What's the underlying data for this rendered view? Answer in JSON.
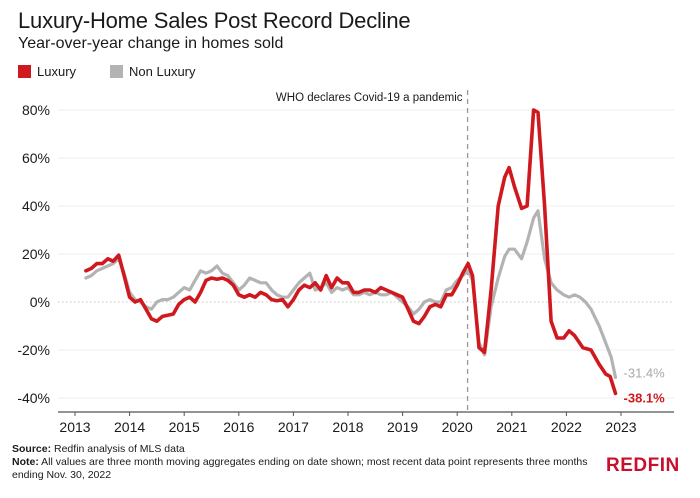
{
  "chart_data": {
    "type": "line",
    "title": "Luxury-Home Sales Post Record Decline",
    "subtitle": "Year-over-year change in homes sold",
    "xlabel": "",
    "ylabel": "",
    "ylim": [
      -40,
      80
    ],
    "xlim": [
      2012.9,
      2023.95
    ],
    "y_ticks": [
      80,
      60,
      40,
      20,
      0,
      -20,
      -40
    ],
    "y_tick_labels": [
      "80%",
      "60%",
      "40%",
      "20%",
      "0%",
      "-20%",
      "-40%"
    ],
    "x_ticks": [
      2013,
      2014,
      2015,
      2016,
      2017,
      2018,
      2019,
      2020,
      2021,
      2022,
      2023
    ],
    "x_tick_labels": [
      "2013",
      "2014",
      "2015",
      "2016",
      "2017",
      "2018",
      "2019",
      "2020",
      "2021",
      "2022",
      "2023"
    ],
    "grid": true,
    "legend": {
      "position": "top-left",
      "entries": [
        "Luxury",
        "Non Luxury"
      ]
    },
    "annotation": {
      "text": "WHO declares Covid-19 a pandemic",
      "x": 2020.19
    },
    "series": [
      {
        "name": "Luxury",
        "color": "#d0191f",
        "end_label": "-38.1%",
        "points": [
          [
            2013.2,
            13
          ],
          [
            2013.3,
            14
          ],
          [
            2013.4,
            16
          ],
          [
            2013.5,
            16
          ],
          [
            2013.6,
            18
          ],
          [
            2013.7,
            17
          ],
          [
            2013.8,
            19.5
          ],
          [
            2013.9,
            11
          ],
          [
            2014.0,
            2
          ],
          [
            2014.1,
            0
          ],
          [
            2014.2,
            1
          ],
          [
            2014.3,
            -3
          ],
          [
            2014.4,
            -7
          ],
          [
            2014.5,
            -8
          ],
          [
            2014.6,
            -6
          ],
          [
            2014.7,
            -5.5
          ],
          [
            2014.8,
            -5
          ],
          [
            2014.9,
            -1
          ],
          [
            2015.0,
            1
          ],
          [
            2015.1,
            2
          ],
          [
            2015.2,
            0
          ],
          [
            2015.3,
            4
          ],
          [
            2015.4,
            9
          ],
          [
            2015.5,
            10
          ],
          [
            2015.6,
            9.5
          ],
          [
            2015.7,
            10
          ],
          [
            2015.8,
            9
          ],
          [
            2015.9,
            7
          ],
          [
            2016.0,
            3
          ],
          [
            2016.1,
            2
          ],
          [
            2016.2,
            3
          ],
          [
            2016.3,
            2
          ],
          [
            2016.4,
            4
          ],
          [
            2016.5,
            3
          ],
          [
            2016.6,
            1
          ],
          [
            2016.7,
            0.5
          ],
          [
            2016.8,
            1
          ],
          [
            2016.9,
            -2
          ],
          [
            2017.0,
            1
          ],
          [
            2017.1,
            5
          ],
          [
            2017.2,
            7
          ],
          [
            2017.3,
            6
          ],
          [
            2017.4,
            8
          ],
          [
            2017.5,
            5
          ],
          [
            2017.6,
            11
          ],
          [
            2017.7,
            6
          ],
          [
            2017.8,
            10
          ],
          [
            2017.9,
            8
          ],
          [
            2018.0,
            8
          ],
          [
            2018.1,
            4
          ],
          [
            2018.2,
            4
          ],
          [
            2018.3,
            5
          ],
          [
            2018.4,
            5
          ],
          [
            2018.5,
            4
          ],
          [
            2018.6,
            6
          ],
          [
            2018.7,
            5
          ],
          [
            2018.8,
            4
          ],
          [
            2018.9,
            3
          ],
          [
            2019.0,
            2
          ],
          [
            2019.1,
            -3
          ],
          [
            2019.2,
            -8
          ],
          [
            2019.3,
            -9
          ],
          [
            2019.4,
            -6
          ],
          [
            2019.5,
            -2
          ],
          [
            2019.6,
            -1
          ],
          [
            2019.7,
            -2
          ],
          [
            2019.8,
            3
          ],
          [
            2019.9,
            3
          ],
          [
            2020.0,
            7
          ],
          [
            2020.1,
            12
          ],
          [
            2020.2,
            16
          ],
          [
            2020.28,
            11
          ],
          [
            2020.4,
            -19
          ],
          [
            2020.5,
            -21
          ],
          [
            2020.62,
            5
          ],
          [
            2020.75,
            40
          ],
          [
            2020.87,
            52
          ],
          [
            2020.95,
            56
          ],
          [
            2021.05,
            48
          ],
          [
            2021.18,
            39
          ],
          [
            2021.28,
            40
          ],
          [
            2021.4,
            80
          ],
          [
            2021.48,
            79
          ],
          [
            2021.6,
            40
          ],
          [
            2021.72,
            -8
          ],
          [
            2021.83,
            -15
          ],
          [
            2021.95,
            -15
          ],
          [
            2022.05,
            -12
          ],
          [
            2022.15,
            -14
          ],
          [
            2022.3,
            -19
          ],
          [
            2022.45,
            -20
          ],
          [
            2022.6,
            -26
          ],
          [
            2022.72,
            -30
          ],
          [
            2022.8,
            -31
          ],
          [
            2022.9,
            -38.1
          ]
        ]
      },
      {
        "name": "Non Luxury",
        "color": "#b3b3b3",
        "end_label": "-31.4%",
        "points": [
          [
            2013.2,
            10
          ],
          [
            2013.3,
            11
          ],
          [
            2013.4,
            13
          ],
          [
            2013.5,
            14
          ],
          [
            2013.6,
            15
          ],
          [
            2013.7,
            16
          ],
          [
            2013.8,
            18
          ],
          [
            2013.9,
            12
          ],
          [
            2014.0,
            4
          ],
          [
            2014.1,
            1
          ],
          [
            2014.2,
            0
          ],
          [
            2014.3,
            -2
          ],
          [
            2014.4,
            -3
          ],
          [
            2014.5,
            0
          ],
          [
            2014.6,
            1
          ],
          [
            2014.7,
            1
          ],
          [
            2014.8,
            2
          ],
          [
            2014.9,
            4
          ],
          [
            2015.0,
            6
          ],
          [
            2015.1,
            5
          ],
          [
            2015.2,
            9
          ],
          [
            2015.3,
            13
          ],
          [
            2015.4,
            12
          ],
          [
            2015.5,
            13
          ],
          [
            2015.6,
            15
          ],
          [
            2015.7,
            12
          ],
          [
            2015.8,
            11
          ],
          [
            2015.9,
            8
          ],
          [
            2016.0,
            5
          ],
          [
            2016.1,
            7
          ],
          [
            2016.2,
            10
          ],
          [
            2016.3,
            9
          ],
          [
            2016.4,
            8
          ],
          [
            2016.5,
            8
          ],
          [
            2016.6,
            5
          ],
          [
            2016.7,
            3
          ],
          [
            2016.8,
            2
          ],
          [
            2016.9,
            2
          ],
          [
            2017.0,
            5
          ],
          [
            2017.1,
            8
          ],
          [
            2017.2,
            10
          ],
          [
            2017.3,
            12
          ],
          [
            2017.4,
            5
          ],
          [
            2017.5,
            6
          ],
          [
            2017.6,
            8
          ],
          [
            2017.7,
            4
          ],
          [
            2017.8,
            6
          ],
          [
            2017.9,
            5
          ],
          [
            2018.0,
            6
          ],
          [
            2018.1,
            3
          ],
          [
            2018.2,
            3
          ],
          [
            2018.3,
            4
          ],
          [
            2018.4,
            3
          ],
          [
            2018.5,
            4
          ],
          [
            2018.6,
            3
          ],
          [
            2018.7,
            3
          ],
          [
            2018.8,
            4
          ],
          [
            2018.9,
            2
          ],
          [
            2019.0,
            0
          ],
          [
            2019.1,
            -2
          ],
          [
            2019.2,
            -5
          ],
          [
            2019.3,
            -3
          ],
          [
            2019.4,
            0
          ],
          [
            2019.5,
            1
          ],
          [
            2019.6,
            0
          ],
          [
            2019.7,
            0
          ],
          [
            2019.8,
            5
          ],
          [
            2019.9,
            6
          ],
          [
            2020.0,
            9
          ],
          [
            2020.1,
            11
          ],
          [
            2020.2,
            13
          ],
          [
            2020.28,
            9
          ],
          [
            2020.4,
            -17
          ],
          [
            2020.5,
            -22
          ],
          [
            2020.62,
            -2
          ],
          [
            2020.75,
            10
          ],
          [
            2020.87,
            19
          ],
          [
            2020.95,
            22
          ],
          [
            2021.05,
            22
          ],
          [
            2021.18,
            18
          ],
          [
            2021.28,
            25
          ],
          [
            2021.4,
            35
          ],
          [
            2021.48,
            38
          ],
          [
            2021.6,
            18
          ],
          [
            2021.72,
            8
          ],
          [
            2021.83,
            5
          ],
          [
            2021.95,
            3
          ],
          [
            2022.05,
            2
          ],
          [
            2022.15,
            3
          ],
          [
            2022.25,
            2
          ],
          [
            2022.35,
            0
          ],
          [
            2022.45,
            -3
          ],
          [
            2022.6,
            -10
          ],
          [
            2022.72,
            -17
          ],
          [
            2022.82,
            -23
          ],
          [
            2022.9,
            -31.4
          ]
        ]
      }
    ]
  },
  "footer": {
    "source_label": "Source:",
    "source_text": " Redfin analysis of MLS data",
    "note_label": "Note:",
    "note_text": " All values are three month moving aggregates ending on date shown; most recent data point represents three months ending Nov. 30, 2022"
  },
  "logo": "REDFIN"
}
